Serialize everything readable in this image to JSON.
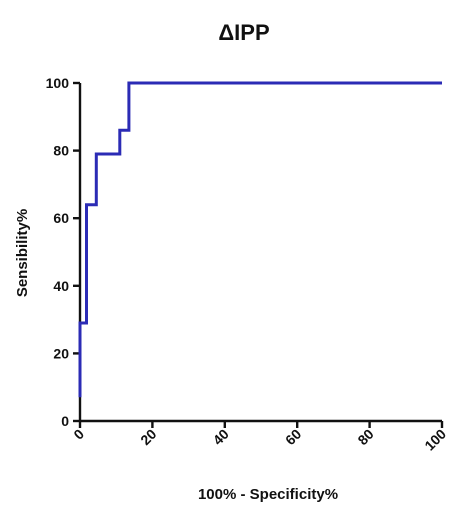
{
  "chart_data": {
    "type": "line",
    "title": "ΔIPP",
    "xlabel": "100% - Specificity%",
    "ylabel": "Sensibility%",
    "xlim": [
      0,
      100
    ],
    "ylim": [
      0,
      100
    ],
    "xticks": [
      "0",
      "20",
      "40",
      "60",
      "80",
      "100"
    ],
    "yticks": [
      "0",
      "20",
      "40",
      "60",
      "80",
      "100"
    ],
    "grid": false,
    "legend": "none",
    "series": [
      {
        "color": "#2b2bb5",
        "x": [
          0,
          0,
          1.8,
          1.8,
          4.5,
          4.5,
          11,
          11,
          13.5,
          13.5,
          100
        ],
        "y": [
          7,
          29,
          29,
          64,
          64,
          79,
          79,
          86,
          86,
          100,
          100
        ]
      }
    ]
  }
}
